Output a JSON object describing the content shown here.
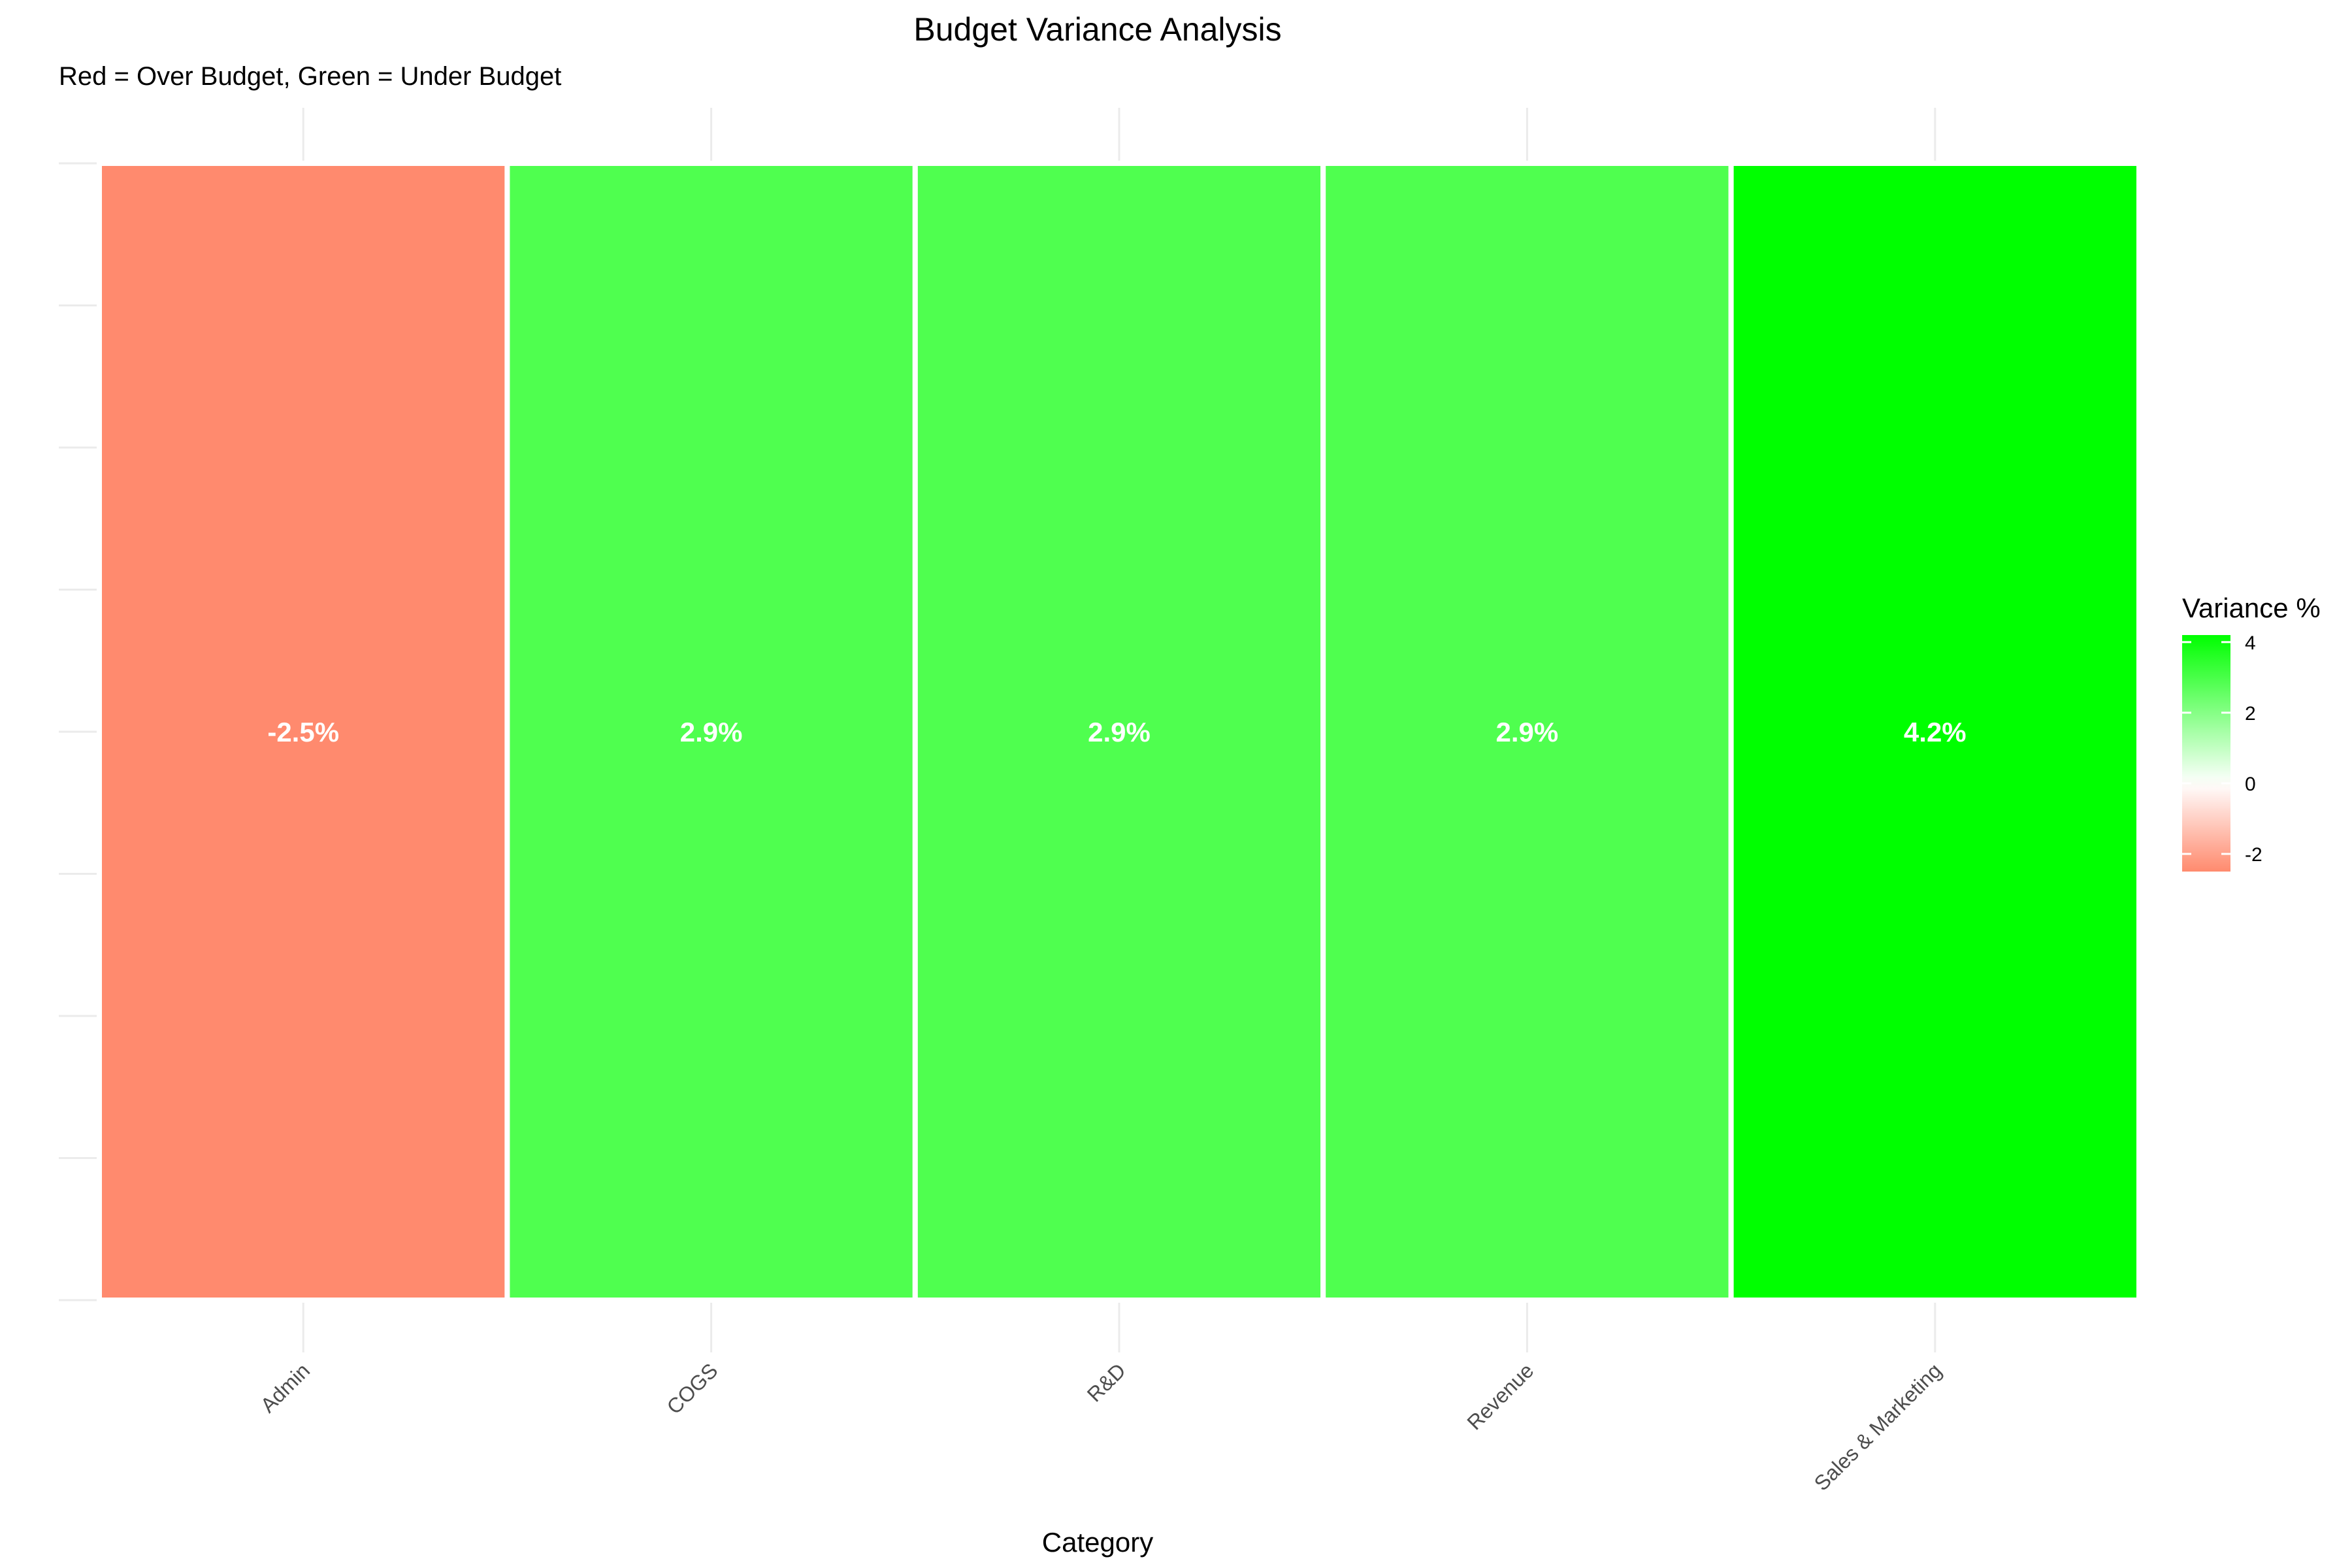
{
  "chart_data": {
    "type": "heatmap",
    "title": "Budget Variance Analysis",
    "subtitle": "Red = Over Budget, Green = Under Budget",
    "xlabel": "Category",
    "ylabel": "",
    "categories": [
      "Admin",
      "COGS",
      "R&D",
      "Revenue",
      "Sales & Marketing"
    ],
    "values": [
      -2.5,
      2.9,
      2.9,
      2.9,
      4.2
    ],
    "value_labels": [
      "-2.5%",
      "2.9%",
      "2.9%",
      "2.9%",
      "4.2%"
    ],
    "legend": {
      "title": "Variance %",
      "ticks": [
        "4",
        "2",
        "0",
        "-2"
      ],
      "tick_values": [
        4,
        2,
        0,
        -2
      ],
      "range": [
        -2.5,
        4.2
      ],
      "placement": "right"
    },
    "colors": {
      "low": "#ff8a6e",
      "mid": "#ffffff",
      "high": "#00ff00"
    },
    "grid": true
  }
}
